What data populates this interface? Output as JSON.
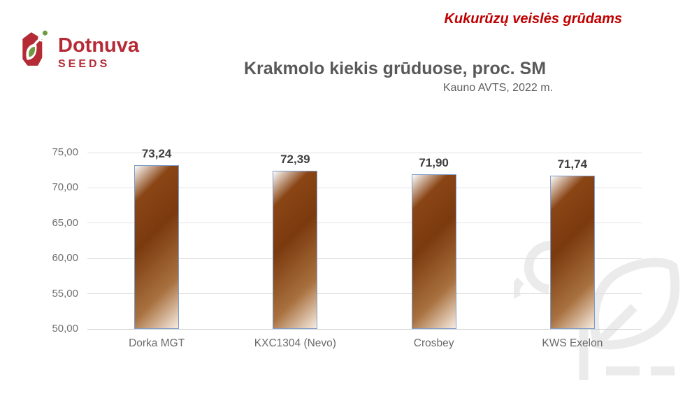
{
  "brand": {
    "name": "Dotnuva",
    "sub": "SEEDS",
    "red": "#b42b36",
    "green": "#6f9a41"
  },
  "header": {
    "tagline": "Kukurūzų veislės grūdams",
    "tagline_color": "#c00000"
  },
  "chart_data": {
    "type": "bar",
    "title": "Krakmolo kiekis grūduose, proc. SM",
    "subtitle": "Kauno AVTS, 2022 m.",
    "categories": [
      "Dorka MGT",
      "KXC1304 (Nevo)",
      "Crosbey",
      "KWS Exelon"
    ],
    "values": [
      73.24,
      72.39,
      71.9,
      71.74
    ],
    "value_labels": [
      "73,24",
      "72,39",
      "71,90",
      "71,74"
    ],
    "ylim": [
      50,
      75
    ],
    "ytick_step": 5,
    "ytick_labels": [
      "75,00",
      "70,00",
      "65,00",
      "60,00",
      "55,00",
      "50,00"
    ],
    "grid": true,
    "legend": false,
    "colors": {
      "bar_dark": "#7b3a0e",
      "bar_mid": "#a9713f",
      "bar_light": "#f6ece2",
      "bar_border": "#7f9dc9",
      "gridline": "#e2e2e2",
      "label": "#6e6e6e",
      "value_label": "#3f3f3f",
      "title": "#595959"
    }
  },
  "watermark": {
    "color": "#ebebeb"
  }
}
